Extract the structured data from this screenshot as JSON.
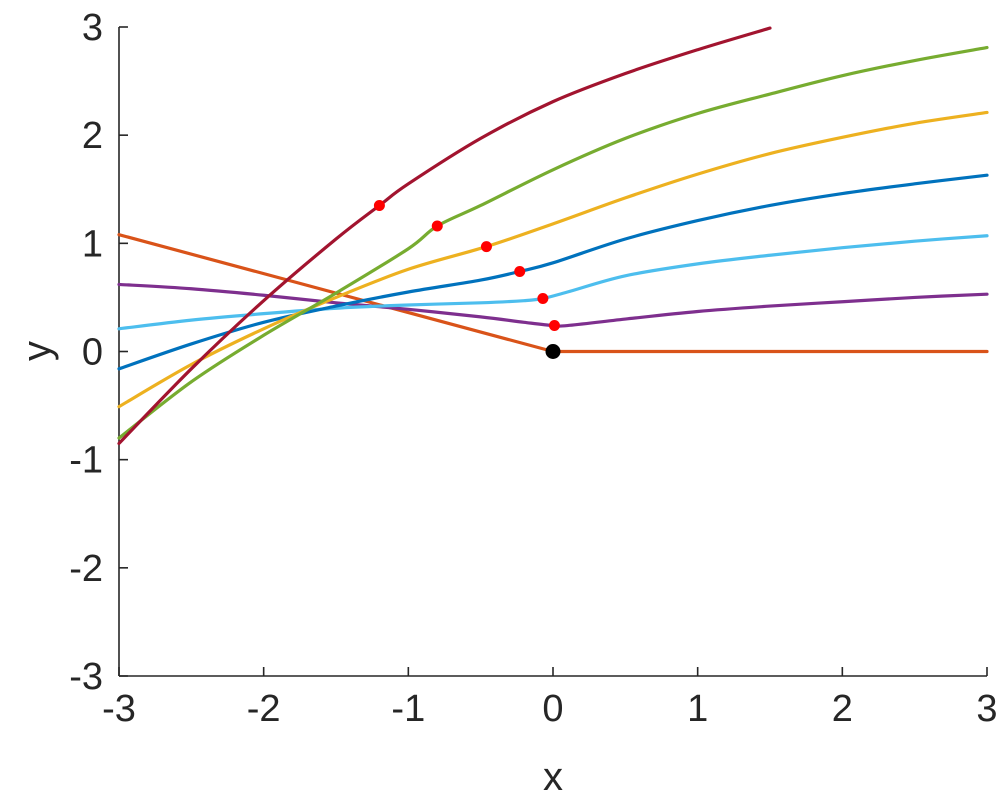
{
  "chart_data": {
    "type": "line",
    "title": "",
    "xlabel": "x",
    "ylabel": "y",
    "xlim": [
      -3,
      3
    ],
    "ylim": [
      -3,
      3
    ],
    "xticks": [
      "-3",
      "-2",
      "-1",
      "0",
      "1",
      "2",
      "3"
    ],
    "yticks": [
      "-3",
      "-2",
      "-1",
      "0",
      "1",
      "2",
      "3"
    ],
    "grid": false,
    "legend": "none",
    "series": [
      {
        "color": "#D95319",
        "x": [
          -3,
          0,
          0.5,
          1,
          1.5,
          2,
          2.5,
          3
        ],
        "y": [
          1.08,
          0,
          0,
          0,
          0,
          0,
          0,
          0
        ]
      },
      {
        "color": "#7E2F8E",
        "x": [
          -3,
          -2.5,
          -2,
          -1.5,
          -1,
          -0.5,
          -0.2,
          0,
          0.1,
          0.5,
          1,
          1.5,
          2,
          2.5,
          3
        ],
        "y": [
          0.62,
          0.58,
          0.52,
          0.45,
          0.39,
          0.32,
          0.27,
          0.24,
          0.24,
          0.3,
          0.37,
          0.42,
          0.46,
          0.5,
          0.53
        ]
      },
      {
        "color": "#4DBEEE",
        "x": [
          -3,
          -2.5,
          -2,
          -1.5,
          -1,
          -0.5,
          -0.2,
          -0.07,
          0.1,
          0.5,
          1,
          1.5,
          2,
          2.5,
          3
        ],
        "y": [
          0.21,
          0.29,
          0.35,
          0.4,
          0.43,
          0.45,
          0.47,
          0.49,
          0.55,
          0.7,
          0.81,
          0.89,
          0.96,
          1.02,
          1.07
        ]
      },
      {
        "color": "#0072BD",
        "x": [
          -3,
          -2.5,
          -2,
          -1.5,
          -1,
          -0.5,
          -0.23,
          0,
          0.5,
          1,
          1.5,
          2,
          2.5,
          3
        ],
        "y": [
          -0.16,
          0.07,
          0.27,
          0.42,
          0.55,
          0.66,
          0.74,
          0.82,
          1.04,
          1.21,
          1.35,
          1.46,
          1.55,
          1.63
        ]
      },
      {
        "color": "#EDB120",
        "x": [
          -3,
          -2.5,
          -2,
          -1.5,
          -1,
          -0.46,
          0,
          0.5,
          1,
          1.5,
          2,
          2.5,
          3
        ],
        "y": [
          -0.51,
          -0.12,
          0.21,
          0.5,
          0.76,
          0.97,
          1.18,
          1.42,
          1.64,
          1.83,
          1.98,
          2.11,
          2.21
        ]
      },
      {
        "color": "#77AC30",
        "x": [
          -3,
          -2.5,
          -2,
          -1.5,
          -1,
          -0.8,
          -0.5,
          0,
          0.5,
          1,
          1.5,
          2,
          2.5,
          3
        ],
        "y": [
          -0.8,
          -0.28,
          0.15,
          0.54,
          0.95,
          1.16,
          1.35,
          1.68,
          1.97,
          2.2,
          2.38,
          2.55,
          2.69,
          2.81
        ]
      },
      {
        "color": "#A2142F",
        "x": [
          -3,
          -2.5,
          -2,
          -1.5,
          -1.2,
          -1,
          -0.5,
          0,
          0.5,
          1,
          1.5
        ],
        "y": [
          -0.85,
          -0.16,
          0.47,
          1.04,
          1.35,
          1.55,
          1.97,
          2.31,
          2.57,
          2.79,
          2.99
        ]
      }
    ],
    "markers": {
      "red": {
        "color": "#FF0000",
        "points": [
          [
            -1.2,
            1.35
          ],
          [
            -0.8,
            1.16
          ],
          [
            -0.46,
            0.97
          ],
          [
            -0.23,
            0.74
          ],
          [
            -0.07,
            0.49
          ],
          [
            0.01,
            0.24
          ]
        ]
      },
      "black": {
        "color": "#000000",
        "points": [
          [
            0,
            0
          ]
        ]
      }
    }
  }
}
